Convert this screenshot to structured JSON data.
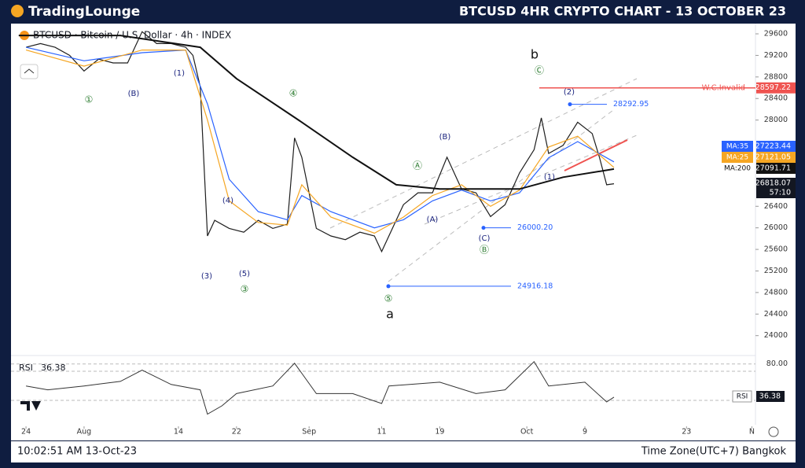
{
  "header": {
    "logo": "TradingLounge",
    "title": "BTCUSD 4HR CRYPTO CHART - 13 OCTOBER 23"
  },
  "footer": {
    "timestamp": "10:02:51 AM 13-Oct-23",
    "timezone": "Time Zone(UTC+7) Bangkok"
  },
  "chart_data": {
    "type": "line",
    "title": "BTCUSD · Bitcoin / U.S. Dollar · 4h · INDEX",
    "xlim": [
      -1.2,
      100.5
    ],
    "xticks": [
      {
        "value": 0,
        "label": "24"
      },
      {
        "value": 8,
        "label": "Aug"
      },
      {
        "value": 21,
        "label": "14"
      },
      {
        "value": 29,
        "label": "22"
      },
      {
        "value": 39,
        "label": "Sep"
      },
      {
        "value": 49,
        "label": "11"
      },
      {
        "value": 57,
        "label": "19"
      },
      {
        "value": 69,
        "label": "Oct"
      },
      {
        "value": 77,
        "label": "9"
      },
      {
        "value": 91,
        "label": "23"
      },
      {
        "value": 100,
        "label": "N"
      }
    ],
    "ylim": [
      23660,
      29790
    ],
    "yticks": [
      24000,
      24400,
      24800,
      25200,
      25600,
      26000,
      26400,
      28000,
      28400,
      28800,
      29200,
      29600
    ],
    "series": [
      {
        "name": "BTCUSD",
        "color": "#1e1e1e",
        "x": [
          0,
          2,
          4,
          6,
          8,
          10,
          12,
          14,
          16,
          18,
          20,
          22,
          23,
          24,
          25,
          26,
          28,
          30,
          32,
          34,
          36,
          37,
          38,
          40,
          42,
          44,
          46,
          48,
          49,
          50,
          52,
          54,
          56,
          58,
          60,
          62,
          64,
          66,
          68,
          70,
          71,
          72,
          74,
          76,
          78,
          79,
          80,
          81
        ],
        "values": [
          29350,
          29420,
          29350,
          29200,
          28910,
          29130,
          29060,
          29060,
          29640,
          29420,
          29420,
          29350,
          29200,
          28620,
          25850,
          26140,
          25990,
          25920,
          26140,
          25990,
          26070,
          27670,
          27310,
          25990,
          25850,
          25780,
          25920,
          25850,
          25560,
          25850,
          26430,
          26650,
          26650,
          27310,
          26720,
          26650,
          26210,
          26430,
          27020,
          27450,
          28040,
          27380,
          27530,
          27960,
          27750,
          27310,
          26800,
          26818.07
        ]
      },
      {
        "name": "MA:35",
        "color": "#2962ff",
        "x": [
          0,
          8,
          16,
          22,
          25,
          28,
          32,
          36,
          38,
          42,
          48,
          52,
          56,
          60,
          64,
          68,
          72,
          76,
          81
        ],
        "values": [
          29350,
          29100,
          29250,
          29300,
          28300,
          26900,
          26300,
          26150,
          26600,
          26300,
          26000,
          26150,
          26500,
          26700,
          26500,
          26650,
          27300,
          27600,
          27223.44
        ]
      },
      {
        "name": "MA:25",
        "color": "#f5a623",
        "x": [
          0,
          8,
          16,
          22,
          25,
          28,
          32,
          36,
          38,
          42,
          48,
          52,
          56,
          60,
          64,
          68,
          72,
          76,
          81
        ],
        "values": [
          29300,
          29000,
          29300,
          29300,
          28000,
          26500,
          26100,
          26050,
          26800,
          26200,
          25900,
          26200,
          26600,
          26800,
          26400,
          26700,
          27500,
          27700,
          27121.05
        ]
      },
      {
        "name": "MA:200",
        "color": "#111111",
        "x": [
          -1,
          13,
          24,
          29,
          38,
          45,
          51,
          57,
          64,
          68,
          74,
          81
        ],
        "values": [
          29570,
          29570,
          29350,
          28770,
          27960,
          27310,
          26800,
          26720,
          26720,
          26720,
          26940,
          27091.71
        ]
      }
    ],
    "countdown": "57:10",
    "levels": [
      {
        "value": 28597.22,
        "label": "W.C.Invalid",
        "color": "#ef5350"
      },
      {
        "value": 28292.95,
        "color": "#2962ff"
      },
      {
        "value": 26000.2,
        "value_label": "26000.20",
        "color": "#2962ff"
      },
      {
        "value": 24916.18,
        "color": "#2962ff"
      }
    ],
    "annotations": [
      "b",
      "a",
      "①",
      "(B)",
      "(1)",
      "(3)",
      "(5)",
      "③",
      "(4)",
      "④",
      "⑤",
      "Ⓐ",
      "(A)",
      "(B)",
      "Ⓑ",
      "(C)",
      "Ⓒ",
      "(1)",
      "(2)"
    ],
    "rsi": {
      "name": "RSI",
      "color": "#333333",
      "x": [
        0,
        3,
        8,
        13,
        16,
        20,
        24,
        25,
        27,
        29,
        34,
        37,
        40,
        45,
        49,
        50,
        57,
        62,
        66,
        70,
        72,
        77,
        80,
        81
      ],
      "values": [
        51,
        46,
        51,
        57,
        72,
        53,
        46,
        14,
        25,
        41,
        51,
        81,
        41,
        41,
        28,
        51,
        56,
        41,
        46,
        83,
        51,
        56,
        30,
        36.38
      ],
      "ylim": [
        0,
        88
      ],
      "yticks": [
        {
          "value": 80,
          "label": "80.00"
        }
      ]
    }
  }
}
